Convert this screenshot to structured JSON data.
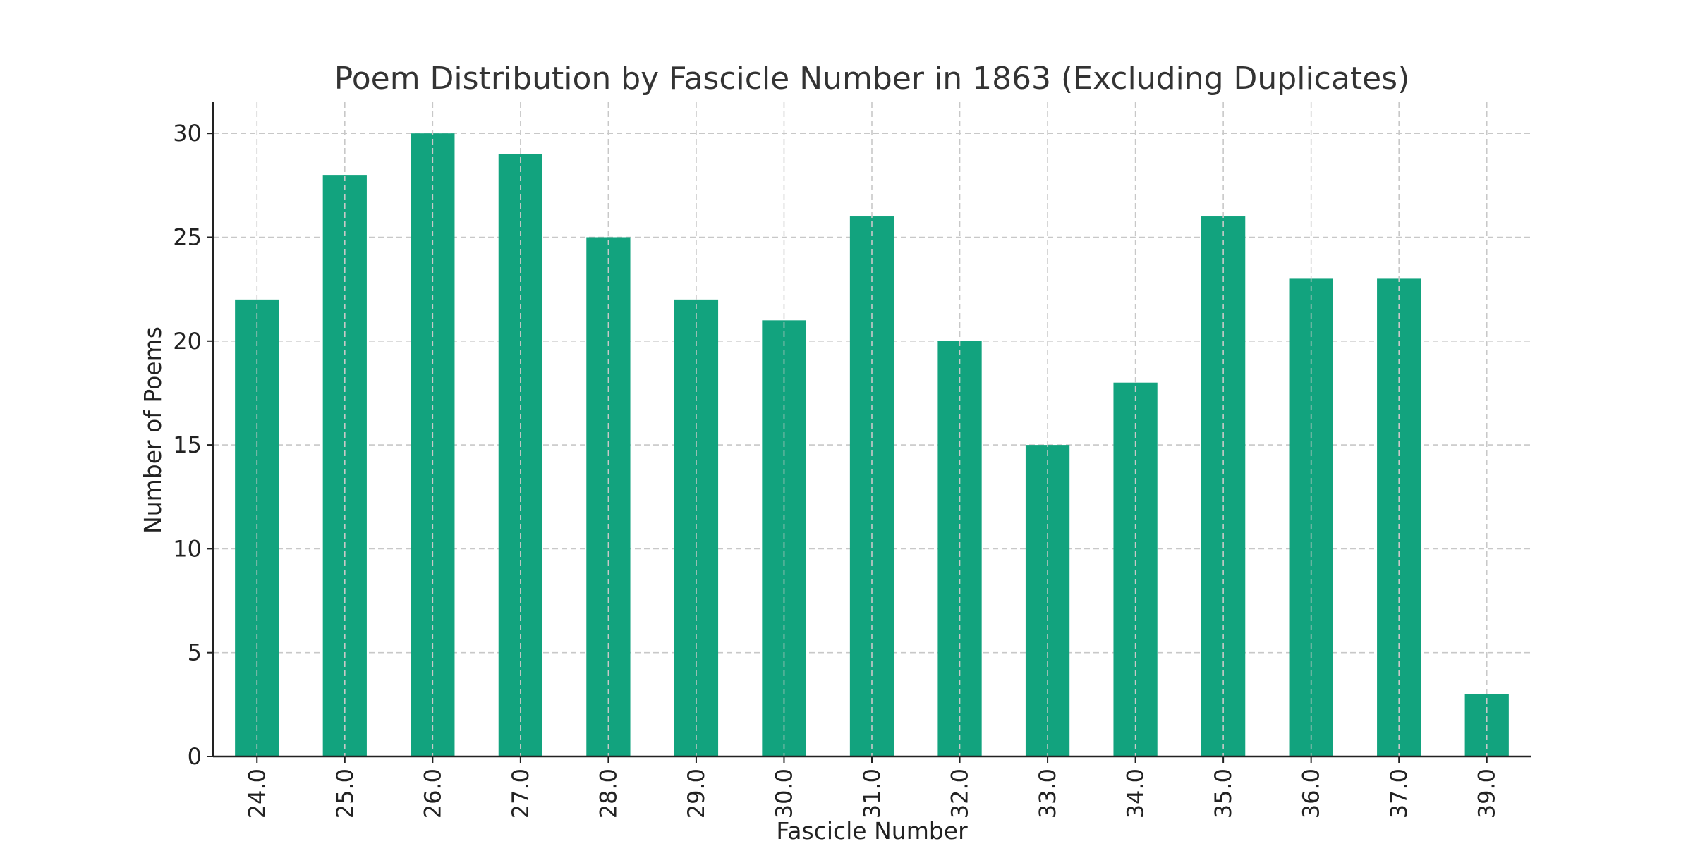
{
  "chart_data": {
    "type": "bar",
    "title": "Poem Distribution by Fascicle Number in 1863 (Excluding Duplicates)",
    "xlabel": "Fascicle Number",
    "ylabel": "Number of Poems",
    "categories": [
      "24.0",
      "25.0",
      "26.0",
      "27.0",
      "28.0",
      "29.0",
      "30.0",
      "31.0",
      "32.0",
      "33.0",
      "34.0",
      "35.0",
      "36.0",
      "37.0",
      "39.0"
    ],
    "values": [
      22,
      28,
      30,
      29,
      25,
      22,
      21,
      26,
      20,
      15,
      18,
      26,
      23,
      23,
      3
    ],
    "ylim": [
      0,
      31.5
    ],
    "yticks": [
      "0",
      "5",
      "10",
      "15",
      "20",
      "25",
      "30"
    ],
    "grid": true,
    "bar_color": "#12a37e"
  }
}
